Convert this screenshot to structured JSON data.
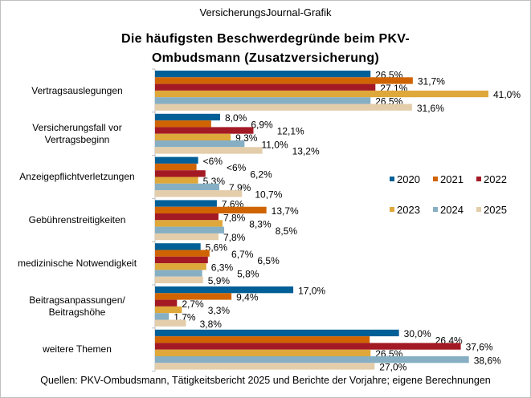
{
  "header": {
    "brand": "VersicherungsJournal-Grafik",
    "title_line1": "Die häufigsten Beschwerdegründe  beim PKV-",
    "title_line2": "Ombudsmann  (Zusatzversicherung)"
  },
  "footer": {
    "source": "Quellen: PKV-Ombudsmann, Tätigkeitsbericht 2025 und Berichte der Vorjahre; eigene Berechnungen"
  },
  "chart_data": {
    "type": "bar",
    "orientation": "horizontal",
    "title": "Die häufigsten Beschwerdegründe  beim PKV-Ombudsmann  (Zusatzversicherung)",
    "unit": "%",
    "xlim": [
      0,
      41
    ],
    "grid": false,
    "legend_placement": "right",
    "categories": [
      {
        "lines": [
          "Vertragsauslegungen"
        ]
      },
      {
        "lines": [
          "Versicherungsfall vor",
          "Vertragsbeginn"
        ]
      },
      {
        "lines": [
          "Anzeigepflichtverletzungen"
        ]
      },
      {
        "lines": [
          "Gebührenstreitigkeiten"
        ]
      },
      {
        "lines": [
          "medizinische Notwendigkeit"
        ]
      },
      {
        "lines": [
          "Beitragsanpassungen/",
          "Beitragshöhe"
        ]
      },
      {
        "lines": [
          "weitere Themen"
        ]
      }
    ],
    "series": [
      {
        "name": "2020",
        "color": "#005f96",
        "values": [
          26.5,
          8.0,
          5.3,
          7.6,
          5.6,
          17.0,
          30.0
        ],
        "labels": [
          "26,5%",
          "8,0%",
          "<6%",
          "7,6%",
          "5,6%",
          "17,0%",
          "30,0%"
        ]
      },
      {
        "name": "2021",
        "color": "#d06402",
        "values": [
          31.7,
          6.9,
          5.1,
          13.7,
          6.7,
          9.4,
          26.4
        ],
        "labels": [
          "31,7%",
          "6,9%",
          "<6%",
          "13,7%",
          "6,7%",
          "9,4%",
          "26,4%"
        ]
      },
      {
        "name": "2022",
        "color": "#a31a24",
        "values": [
          27.1,
          12.1,
          6.2,
          7.8,
          6.5,
          2.7,
          37.6
        ],
        "labels": [
          "27,1%",
          "12,1%",
          "6,2%",
          "7,8%",
          "6,5%",
          "2,7%",
          "37,6%"
        ]
      },
      {
        "name": "2023",
        "color": "#dea83a",
        "values": [
          41.0,
          9.3,
          5.3,
          8.3,
          6.3,
          3.3,
          26.5
        ],
        "labels": [
          "41,0%",
          "9,3%",
          "5,3%",
          "8,3%",
          "6,3%",
          "3,3%",
          "26,5%"
        ]
      },
      {
        "name": "2024",
        "color": "#86afc4",
        "values": [
          26.5,
          11.0,
          7.9,
          8.5,
          5.8,
          1.7,
          38.6
        ],
        "labels": [
          "26,5%",
          "11,0%",
          "7,9%",
          "8,5%",
          "5,8%",
          "1,7%",
          "38,6%"
        ]
      },
      {
        "name": "2025",
        "color": "#e3cdaa",
        "values": [
          31.6,
          13.2,
          10.7,
          7.8,
          5.9,
          3.8,
          27.0
        ],
        "labels": [
          "31,6%",
          "13,2%",
          "10,7%",
          "7,8%",
          "5,9%",
          "3,8%",
          "27,0%"
        ]
      }
    ]
  }
}
